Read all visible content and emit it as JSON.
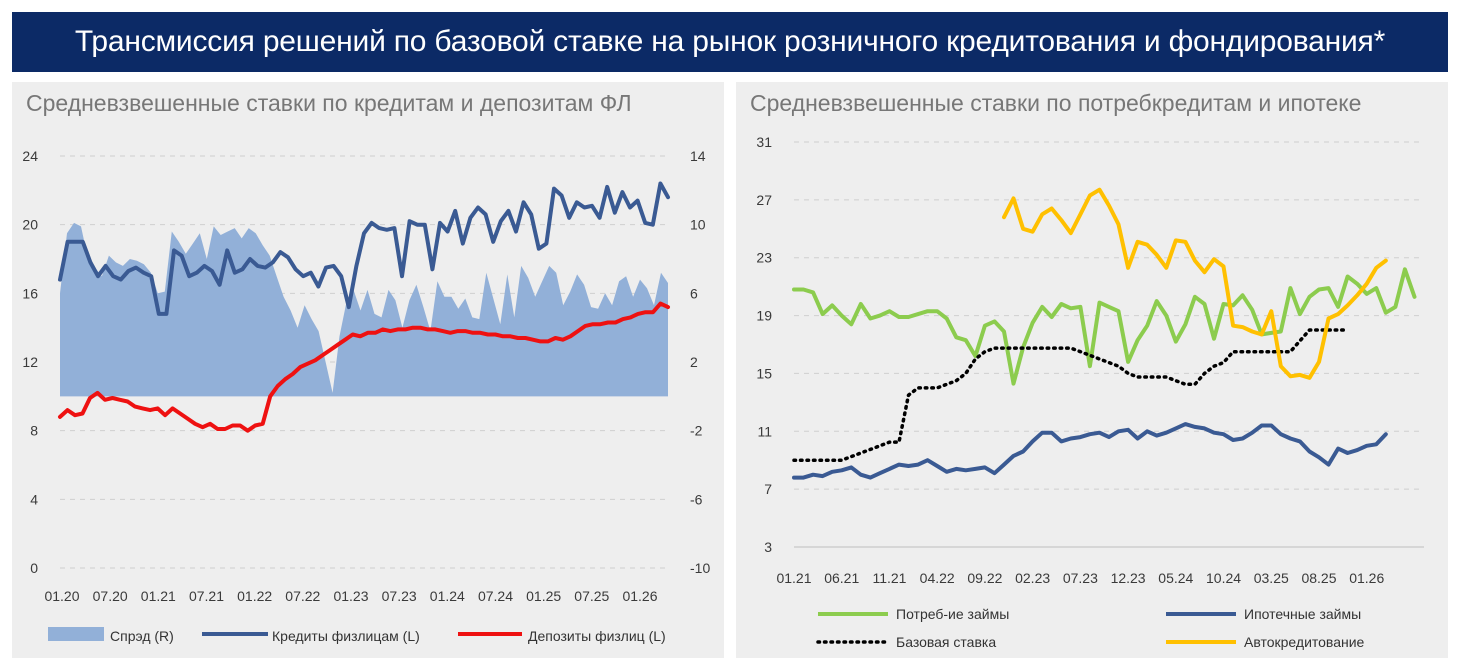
{
  "header": {
    "title": "Трансмиссия решений по базовой ставке на рынок розничного кредитования и фондирования*"
  },
  "chart_data": [
    {
      "type": "line",
      "title": "Средневзвешенные ставки по кредитам и депозитам ФЛ",
      "x_tick_labels": [
        "01.20",
        "07.20",
        "01.21",
        "07.21",
        "01.22",
        "07.22",
        "01.23",
        "07.23",
        "01.24",
        "07.24",
        "01.25",
        "07.25",
        "01.26"
      ],
      "y_left": {
        "range": [
          0,
          24
        ],
        "ticks": [
          "24",
          "20",
          "16",
          "12",
          "8",
          "4",
          "0"
        ]
      },
      "y_right": {
        "range": [
          -10,
          14
        ],
        "ticks": [
          "14",
          "10",
          "6",
          "2",
          "-2",
          "-6",
          "-10"
        ]
      },
      "series": [
        {
          "name": "Спрэд (R)",
          "kind": "area",
          "axis": "right",
          "color": "#92b0d8",
          "values": [
            6.0,
            9.5,
            10.1,
            9.9,
            8.0,
            7.5,
            7.0,
            8.2,
            7.8,
            7.6,
            8.0,
            7.9,
            7.7,
            7.2,
            6.0,
            6.1,
            9.6,
            9.0,
            8.3,
            8.9,
            9.5,
            8.0,
            9.9,
            9.4,
            9.6,
            9.8,
            9.2,
            9.8,
            9.5,
            8.8,
            8.2,
            7.0,
            5.8,
            5.0,
            4.0,
            5.3,
            4.5,
            3.8,
            2.0,
            0.2,
            3.5,
            5.5,
            6.2,
            5.0,
            6.2,
            4.8,
            4.6,
            6.2,
            5.6,
            4.0,
            5.6,
            6.5,
            5.2,
            3.8,
            6.7,
            5.8,
            5.8,
            5.1,
            5.7,
            4.6,
            4.5,
            7.2,
            5.7,
            4.2,
            7.1,
            4.6,
            7.6,
            6.9,
            5.8,
            6.7,
            7.6,
            7.2,
            5.3,
            6.1,
            7.1,
            6.5,
            5.2,
            5.1,
            6.0,
            5.3,
            6.7,
            7.0,
            5.8,
            6.8,
            6.3,
            5.3,
            7.2,
            6.6
          ]
        },
        {
          "name": "Кредиты физлицам (L)",
          "kind": "line",
          "axis": "left",
          "color": "#3a5a93",
          "values": [
            16.8,
            19.0,
            19.0,
            19.0,
            17.8,
            17.0,
            17.6,
            17.0,
            16.8,
            17.3,
            17.5,
            17.2,
            17.0,
            14.8,
            14.8,
            18.5,
            18.2,
            17.0,
            17.2,
            17.6,
            17.3,
            16.5,
            18.5,
            17.2,
            17.4,
            18.0,
            17.6,
            17.5,
            17.8,
            18.4,
            18.1,
            17.4,
            17.0,
            17.2,
            16.4,
            17.5,
            17.6,
            17.0,
            15.2,
            17.6,
            19.5,
            20.1,
            19.8,
            19.7,
            19.8,
            17.0,
            20.2,
            20.0,
            20.0,
            17.4,
            20.1,
            19.6,
            20.8,
            18.9,
            20.4,
            21.0,
            20.6,
            19.0,
            20.2,
            20.8,
            19.6,
            21.3,
            20.6,
            18.6,
            18.9,
            22.1,
            21.7,
            20.4,
            21.3,
            21.0,
            21.1,
            20.4,
            22.2,
            20.7,
            21.9,
            21.0,
            21.4,
            20.1,
            20.0,
            22.4,
            21.6
          ]
        },
        {
          "name": "Депозиты физлиц (L)",
          "kind": "line",
          "axis": "left",
          "color": "#ee1111",
          "values": [
            8.8,
            9.2,
            8.9,
            9.0,
            9.9,
            10.2,
            9.8,
            9.9,
            9.8,
            9.7,
            9.4,
            9.3,
            9.2,
            9.3,
            8.9,
            9.3,
            9.0,
            8.7,
            8.4,
            8.2,
            8.4,
            8.1,
            8.1,
            8.3,
            8.3,
            8.0,
            8.3,
            8.4,
            10.0,
            10.6,
            11.0,
            11.3,
            11.7,
            11.9,
            12.1,
            12.4,
            12.7,
            13.0,
            13.3,
            13.6,
            13.5,
            13.7,
            13.7,
            13.9,
            13.8,
            13.9,
            13.9,
            14.0,
            14.0,
            13.9,
            13.9,
            13.8,
            13.7,
            13.8,
            13.8,
            13.7,
            13.7,
            13.6,
            13.6,
            13.5,
            13.5,
            13.4,
            13.4,
            13.3,
            13.2,
            13.2,
            13.4,
            13.3,
            13.5,
            13.8,
            14.1,
            14.2,
            14.2,
            14.3,
            14.3,
            14.5,
            14.6,
            14.8,
            14.9,
            14.9,
            15.4,
            15.2
          ]
        }
      ],
      "legend": [
        "Спрэд (R)",
        "Кредиты физлицам (L)",
        "Депозиты физлиц (L)"
      ]
    },
    {
      "type": "line",
      "title": "Средневзвешенные ставки по потребкредитам и ипотеке",
      "x_tick_labels": [
        "01.21",
        "06.21",
        "11.21",
        "04.22",
        "09.22",
        "02.23",
        "07.23",
        "12.23",
        "05.24",
        "10.24",
        "03.25",
        "08.25",
        "01.26"
      ],
      "y_axis": {
        "range": [
          3,
          31
        ],
        "ticks": [
          "31",
          "27",
          "23",
          "19",
          "15",
          "11",
          "7",
          "3"
        ]
      },
      "series": [
        {
          "name": "Потреб-ие займы",
          "style": "solid",
          "color": "#8ccc4e",
          "values": [
            20.8,
            20.8,
            20.6,
            19.1,
            19.7,
            19.0,
            18.4,
            19.8,
            18.8,
            19.0,
            19.3,
            18.9,
            18.9,
            19.1,
            19.3,
            19.3,
            18.8,
            17.5,
            17.3,
            16.2,
            18.3,
            18.6,
            17.9,
            14.3,
            16.8,
            18.5,
            19.6,
            18.9,
            19.8,
            19.5,
            19.6,
            15.5,
            19.9,
            19.6,
            19.3,
            15.8,
            17.3,
            18.3,
            20.0,
            19.0,
            17.2,
            18.4,
            20.3,
            19.8,
            17.4,
            19.8,
            19.7,
            20.4,
            19.4,
            17.7,
            17.8,
            17.9,
            20.9,
            19.1,
            20.3,
            20.8,
            20.9,
            19.6,
            21.7,
            21.2,
            20.5,
            20.9,
            19.2,
            19.6,
            22.2,
            20.3
          ]
        },
        {
          "name": "Ипотечные займы",
          "style": "solid",
          "color": "#3a5a93",
          "values": [
            7.8,
            7.8,
            8.0,
            7.9,
            8.2,
            8.3,
            8.5,
            8.0,
            7.8,
            8.1,
            8.4,
            8.7,
            8.6,
            8.7,
            9.0,
            8.6,
            8.2,
            8.4,
            8.3,
            8.4,
            8.5,
            8.1,
            8.7,
            9.3,
            9.6,
            10.3,
            10.9,
            10.9,
            10.3,
            10.5,
            10.6,
            10.8,
            10.9,
            10.6,
            11.0,
            11.1,
            10.5,
            11.0,
            10.7,
            10.9,
            11.2,
            11.5,
            11.3,
            11.2,
            10.9,
            10.8,
            10.4,
            10.5,
            10.9,
            11.4,
            11.4,
            10.8,
            10.5,
            10.3,
            9.6,
            9.2,
            8.7,
            9.8,
            9.5,
            9.7,
            10.0,
            10.1,
            10.8
          ]
        },
        {
          "name": "Базовая ставка",
          "style": "dotted",
          "color": "#000000",
          "values": [
            9.0,
            9.0,
            9.0,
            9.0,
            9.0,
            9.0,
            9.25,
            9.5,
            9.75,
            10.0,
            10.25,
            10.25,
            13.5,
            14.0,
            14.0,
            14.0,
            14.25,
            14.5,
            15.0,
            16.0,
            16.5,
            16.75,
            16.75,
            16.75,
            16.75,
            16.75,
            16.75,
            16.75,
            16.75,
            16.75,
            16.5,
            16.25,
            16.0,
            15.75,
            15.5,
            15.0,
            14.75,
            14.75,
            14.75,
            14.75,
            14.5,
            14.25,
            14.25,
            15.0,
            15.5,
            15.75,
            16.5,
            16.5,
            16.5,
            16.5,
            16.5,
            16.5,
            16.5,
            17.25,
            18.0,
            18.0,
            18.0,
            18.0,
            18.0
          ]
        },
        {
          "name": "Автокредитование",
          "style": "solid",
          "color": "#ffc000",
          "values": [
            25.8,
            27.1,
            25.0,
            24.8,
            26.0,
            26.4,
            25.6,
            24.7,
            26.0,
            27.3,
            27.7,
            26.6,
            25.3,
            22.3,
            24.1,
            23.9,
            23.2,
            22.3,
            24.2,
            24.1,
            22.8,
            22.0,
            22.9,
            22.4,
            18.3,
            18.2,
            17.9,
            17.7,
            19.3,
            15.5,
            14.8,
            14.9,
            14.7,
            15.8,
            18.8,
            19.1,
            19.7,
            20.4,
            21.2,
            22.3,
            22.8
          ]
        }
      ],
      "legend": [
        "Потреб-ие займы",
        "Ипотечные займы",
        "Базовая ставка",
        "Автокредитование"
      ]
    }
  ]
}
